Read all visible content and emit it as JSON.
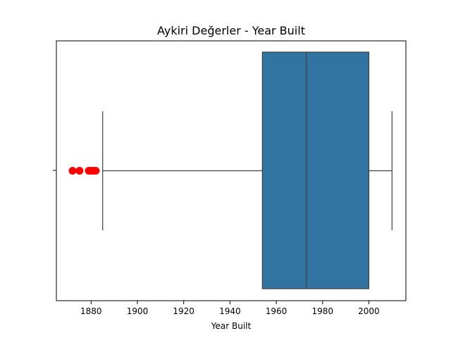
{
  "chart_data": {
    "type": "box",
    "title": "Aykiri Değerler - Year Built",
    "xlabel": "Year Built",
    "ylabel": "",
    "xlim": [
      1865,
      2016
    ],
    "xticks": [
      1880,
      1900,
      1920,
      1940,
      1960,
      1980,
      2000
    ],
    "xtick_labels": [
      "1880",
      "1900",
      "1920",
      "1940",
      "1960",
      "1980",
      "2000"
    ],
    "grid": false,
    "box": {
      "whisker_low": 1885,
      "q1": 1954,
      "median": 1973,
      "q3": 2000,
      "whisker_high": 2010,
      "outliers": [
        1872,
        1875,
        1879,
        1880,
        1881,
        1882
      ]
    },
    "colors": {
      "box_fill": "#3274a1",
      "line": "#3f3f3f",
      "outlier": "#ff0000"
    }
  }
}
